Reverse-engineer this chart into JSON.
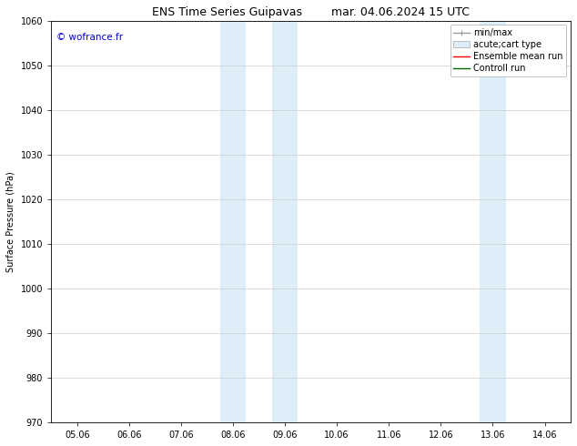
{
  "title": "ENS Time Series Guipavas",
  "title2": "mar. 04.06.2024 15 UTC",
  "ylabel": "Surface Pressure (hPa)",
  "ylim": [
    970,
    1060
  ],
  "yticks": [
    970,
    980,
    990,
    1000,
    1010,
    1020,
    1030,
    1040,
    1050,
    1060
  ],
  "xlim": [
    -0.5,
    9.5
  ],
  "xtick_labels": [
    "05.06",
    "06.06",
    "07.06",
    "08.06",
    "09.06",
    "10.06",
    "11.06",
    "12.06",
    "13.06",
    "14.06"
  ],
  "xtick_positions": [
    0,
    1,
    2,
    3,
    4,
    5,
    6,
    7,
    8,
    9
  ],
  "shaded_regions": [
    {
      "xmin": 2.75,
      "xmax": 3.25,
      "color": "#ddeef8"
    },
    {
      "xmin": 3.75,
      "xmax": 4.25,
      "color": "#ddeef8"
    },
    {
      "xmin": 7.75,
      "xmax": 8.25,
      "color": "#ddeef8"
    }
  ],
  "watermark": "© wofrance.fr",
  "watermark_color": "#0000cc",
  "bg_color": "#ffffff",
  "grid_color": "#cccccc",
  "title_fontsize": 9,
  "axis_label_fontsize": 7,
  "tick_fontsize": 7,
  "legend_fontsize": 7
}
